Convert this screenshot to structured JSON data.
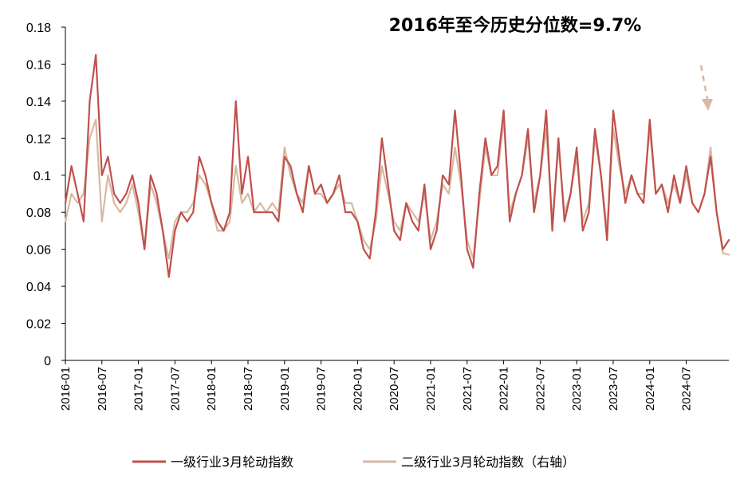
{
  "chart_data": {
    "type": "line",
    "annotation": "2016年至今历史分位数=9.7%",
    "xlabel": "",
    "ylabel": "",
    "ylim": [
      0,
      0.18
    ],
    "yticks": [
      "0",
      "0.02",
      "0.04",
      "0.06",
      "0.08",
      "0.1",
      "0.12",
      "0.14",
      "0.16",
      "0.18"
    ],
    "xlim": [
      "2016-01",
      "2025-02"
    ],
    "xticks": [
      "2016-01",
      "2016-07",
      "2017-01",
      "2017-07",
      "2018-01",
      "2018-07",
      "2019-01",
      "2019-07",
      "2020-01",
      "2020-07",
      "2021-01",
      "2021-07",
      "2022-01",
      "2022-07",
      "2023-01",
      "2023-07",
      "2024-01",
      "2024-07"
    ],
    "grid": false,
    "legend_position": "bottom",
    "trend_arrow": "down",
    "colors": {
      "series1": "#c0504d",
      "series2": "#d9b8a3",
      "arrow": "#d9b8a3"
    },
    "series": [
      {
        "name": "一级行业3月轮动指数",
        "x": [
          "2016-01",
          "2016-02",
          "2016-03",
          "2016-04",
          "2016-05",
          "2016-06",
          "2016-07",
          "2016-08",
          "2016-09",
          "2016-10",
          "2016-11",
          "2016-12",
          "2017-01",
          "2017-02",
          "2017-03",
          "2017-04",
          "2017-05",
          "2017-06",
          "2017-07",
          "2017-08",
          "2017-09",
          "2017-10",
          "2017-11",
          "2017-12",
          "2018-01",
          "2018-02",
          "2018-03",
          "2018-04",
          "2018-05",
          "2018-06",
          "2018-07",
          "2018-08",
          "2018-09",
          "2018-10",
          "2018-11",
          "2018-12",
          "2019-01",
          "2019-02",
          "2019-03",
          "2019-04",
          "2019-05",
          "2019-06",
          "2019-07",
          "2019-08",
          "2019-09",
          "2019-10",
          "2019-11",
          "2019-12",
          "2020-01",
          "2020-02",
          "2020-03",
          "2020-04",
          "2020-05",
          "2020-06",
          "2020-07",
          "2020-08",
          "2020-09",
          "2020-10",
          "2020-11",
          "2020-12",
          "2021-01",
          "2021-02",
          "2021-03",
          "2021-04",
          "2021-05",
          "2021-06",
          "2021-07",
          "2021-08",
          "2021-09",
          "2021-10",
          "2021-11",
          "2021-12",
          "2022-01",
          "2022-02",
          "2022-03",
          "2022-04",
          "2022-05",
          "2022-06",
          "2022-07",
          "2022-08",
          "2022-09",
          "2022-10",
          "2022-11",
          "2022-12",
          "2023-01",
          "2023-02",
          "2023-03",
          "2023-04",
          "2023-05",
          "2023-06",
          "2023-07",
          "2023-08",
          "2023-09",
          "2023-10",
          "2023-11",
          "2023-12",
          "2024-01",
          "2024-02",
          "2024-03",
          "2024-04",
          "2024-05",
          "2024-06",
          "2024-07",
          "2024-08",
          "2024-09",
          "2024-10",
          "2024-11",
          "2024-12",
          "2025-01",
          "2025-02"
        ],
        "values": [
          0.085,
          0.105,
          0.09,
          0.075,
          0.14,
          0.165,
          0.1,
          0.11,
          0.09,
          0.085,
          0.09,
          0.1,
          0.085,
          0.06,
          0.1,
          0.09,
          0.07,
          0.045,
          0.07,
          0.08,
          0.075,
          0.08,
          0.11,
          0.1,
          0.085,
          0.075,
          0.07,
          0.08,
          0.14,
          0.09,
          0.11,
          0.08,
          0.08,
          0.08,
          0.08,
          0.075,
          0.11,
          0.105,
          0.09,
          0.08,
          0.105,
          0.09,
          0.095,
          0.085,
          0.09,
          0.1,
          0.08,
          0.08,
          0.075,
          0.06,
          0.055,
          0.08,
          0.12,
          0.095,
          0.07,
          0.065,
          0.085,
          0.075,
          0.07,
          0.095,
          0.06,
          0.07,
          0.1,
          0.095,
          0.135,
          0.1,
          0.06,
          0.05,
          0.09,
          0.12,
          0.1,
          0.105,
          0.135,
          0.075,
          0.09,
          0.1,
          0.125,
          0.08,
          0.1,
          0.135,
          0.07,
          0.12,
          0.075,
          0.09,
          0.115,
          0.07,
          0.08,
          0.125,
          0.1,
          0.065,
          0.135,
          0.11,
          0.085,
          0.1,
          0.09,
          0.085,
          0.13,
          0.09,
          0.095,
          0.08,
          0.1,
          0.085,
          0.105,
          0.085,
          0.08,
          0.09,
          0.11,
          0.08,
          0.06,
          0.065
        ]
      },
      {
        "name": "二级行业3月轮动指数（右轴）",
        "x": [
          "2016-01",
          "2016-02",
          "2016-03",
          "2016-04",
          "2016-05",
          "2016-06",
          "2016-07",
          "2016-08",
          "2016-09",
          "2016-10",
          "2016-11",
          "2016-12",
          "2017-01",
          "2017-02",
          "2017-03",
          "2017-04",
          "2017-05",
          "2017-06",
          "2017-07",
          "2017-08",
          "2017-09",
          "2017-10",
          "2017-11",
          "2017-12",
          "2018-01",
          "2018-02",
          "2018-03",
          "2018-04",
          "2018-05",
          "2018-06",
          "2018-07",
          "2018-08",
          "2018-09",
          "2018-10",
          "2018-11",
          "2018-12",
          "2019-01",
          "2019-02",
          "2019-03",
          "2019-04",
          "2019-05",
          "2019-06",
          "2019-07",
          "2019-08",
          "2019-09",
          "2019-10",
          "2019-11",
          "2019-12",
          "2020-01",
          "2020-02",
          "2020-03",
          "2020-04",
          "2020-05",
          "2020-06",
          "2020-07",
          "2020-08",
          "2020-09",
          "2020-10",
          "2020-11",
          "2020-12",
          "2021-01",
          "2021-02",
          "2021-03",
          "2021-04",
          "2021-05",
          "2021-06",
          "2021-07",
          "2021-08",
          "2021-09",
          "2021-10",
          "2021-11",
          "2021-12",
          "2022-01",
          "2022-02",
          "2022-03",
          "2022-04",
          "2022-05",
          "2022-06",
          "2022-07",
          "2022-08",
          "2022-09",
          "2022-10",
          "2022-11",
          "2022-12",
          "2023-01",
          "2023-02",
          "2023-03",
          "2023-04",
          "2023-05",
          "2023-06",
          "2023-07",
          "2023-08",
          "2023-09",
          "2023-10",
          "2023-11",
          "2023-12",
          "2024-01",
          "2024-02",
          "2024-03",
          "2024-04",
          "2024-05",
          "2024-06",
          "2024-07",
          "2024-08",
          "2024-09",
          "2024-10",
          "2024-11",
          "2024-12",
          "2025-01",
          "2025-02"
        ],
        "values": [
          0.075,
          0.09,
          0.085,
          0.09,
          0.12,
          0.13,
          0.075,
          0.1,
          0.085,
          0.08,
          0.085,
          0.095,
          0.08,
          0.06,
          0.095,
          0.085,
          0.07,
          0.055,
          0.075,
          0.08,
          0.08,
          0.085,
          0.1,
          0.095,
          0.085,
          0.07,
          0.07,
          0.075,
          0.105,
          0.085,
          0.09,
          0.08,
          0.085,
          0.08,
          0.085,
          0.08,
          0.115,
          0.1,
          0.09,
          0.085,
          0.105,
          0.09,
          0.09,
          0.085,
          0.09,
          0.095,
          0.085,
          0.085,
          0.075,
          0.065,
          0.06,
          0.075,
          0.105,
          0.09,
          0.075,
          0.07,
          0.085,
          0.08,
          0.075,
          0.09,
          0.065,
          0.075,
          0.095,
          0.09,
          0.115,
          0.095,
          0.065,
          0.055,
          0.085,
          0.115,
          0.1,
          0.1,
          0.13,
          0.08,
          0.09,
          0.1,
          0.12,
          0.085,
          0.1,
          0.125,
          0.075,
          0.115,
          0.08,
          0.09,
          0.11,
          0.075,
          0.085,
          0.12,
          0.1,
          0.07,
          0.125,
          0.105,
          0.09,
          0.1,
          0.09,
          0.09,
          0.125,
          0.09,
          0.095,
          0.085,
          0.095,
          0.085,
          0.1,
          0.085,
          0.08,
          0.09,
          0.115,
          0.08,
          0.058,
          0.057
        ]
      }
    ]
  }
}
